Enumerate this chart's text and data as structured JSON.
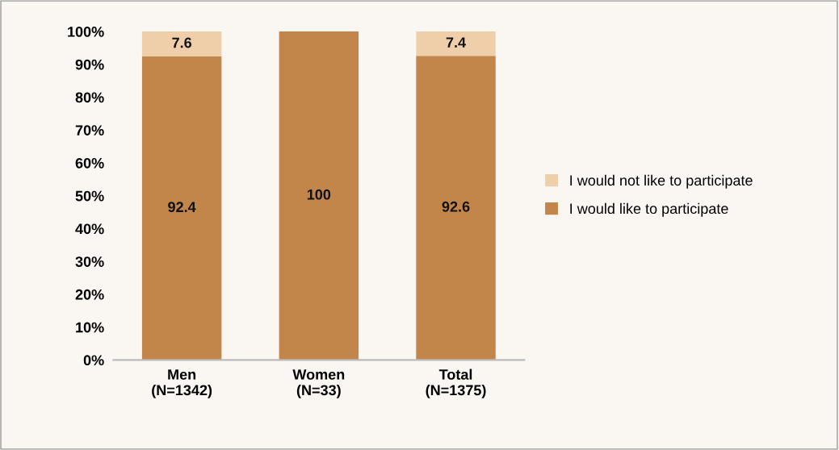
{
  "chart_data": {
    "type": "bar",
    "stacked": true,
    "categories": [
      "Men\n(N=1342)",
      "Women\n(N=33)",
      "Total\n(N=1375)"
    ],
    "series": [
      {
        "name": "I would like to participate",
        "color": "#c2864a",
        "values": [
          92.4,
          100,
          92.6
        ],
        "value_labels": [
          "92.4",
          "100",
          "92.6"
        ]
      },
      {
        "name": "I would not like to participate",
        "color": "#efcfa9",
        "values": [
          7.6,
          0,
          7.4
        ],
        "value_labels": [
          "7.6",
          null,
          "7.4"
        ]
      }
    ],
    "ylim": [
      0,
      100
    ],
    "yticks": [
      {
        "value": 0,
        "label": "0%"
      },
      {
        "value": 10,
        "label": "10%"
      },
      {
        "value": 20,
        "label": "20%"
      },
      {
        "value": 30,
        "label": "30%"
      },
      {
        "value": 40,
        "label": "40%"
      },
      {
        "value": 50,
        "label": "50%"
      },
      {
        "value": 60,
        "label": "60%"
      },
      {
        "value": 70,
        "label": "70%"
      },
      {
        "value": 80,
        "label": "80%"
      },
      {
        "value": 90,
        "label": "90%"
      },
      {
        "value": 100,
        "label": "100%"
      }
    ],
    "grid": false,
    "legend": "right"
  }
}
